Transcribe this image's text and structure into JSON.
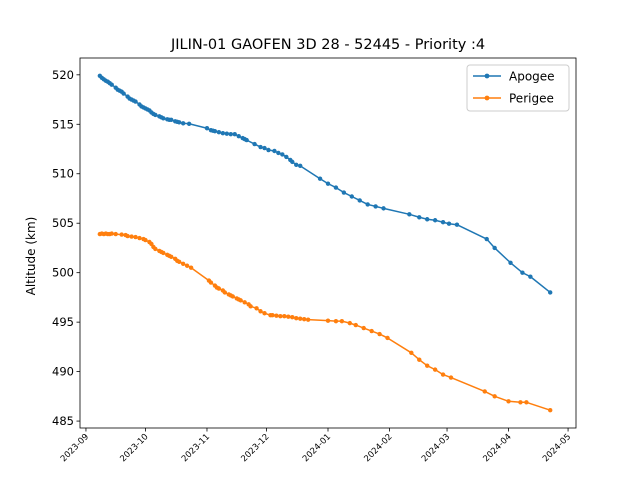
{
  "chart_data": {
    "type": "line",
    "title": "JILIN-01 GAOFEN 3D 28 - 52445 - Priority :4",
    "xlabel": "",
    "ylabel": "Altitude (km)",
    "xlim": [
      "2023-08-29",
      "2024-05-05"
    ],
    "ylim": [
      484.3,
      521.7
    ],
    "x_ticks": [
      "2023-09",
      "2023-10",
      "2023-11",
      "2023-12",
      "2024-01",
      "2024-02",
      "2024-03",
      "2024-04",
      "2024-05"
    ],
    "y_ticks": [
      485,
      490,
      495,
      500,
      505,
      510,
      515,
      520
    ],
    "legend_position": "upper right",
    "grid": false,
    "series": [
      {
        "name": "Apogee",
        "color": "#1f77b4",
        "points": [
          [
            "2023-09-08",
            519.9
          ],
          [
            "2023-09-09",
            519.7
          ],
          [
            "2023-09-10",
            519.55
          ],
          [
            "2023-09-11",
            519.4
          ],
          [
            "2023-09-12",
            519.3
          ],
          [
            "2023-09-13",
            519.15
          ],
          [
            "2023-09-14",
            519.0
          ],
          [
            "2023-09-16",
            518.7
          ],
          [
            "2023-09-17",
            518.5
          ],
          [
            "2023-09-18",
            518.4
          ],
          [
            "2023-09-19",
            518.3
          ],
          [
            "2023-09-20",
            518.1
          ],
          [
            "2023-09-22",
            517.8
          ],
          [
            "2023-09-23",
            517.6
          ],
          [
            "2023-09-24",
            517.5
          ],
          [
            "2023-09-25",
            517.4
          ],
          [
            "2023-09-26",
            517.3
          ],
          [
            "2023-09-28",
            517.0
          ],
          [
            "2023-09-29",
            516.8
          ],
          [
            "2023-09-30",
            516.7
          ],
          [
            "2023-10-01",
            516.6
          ],
          [
            "2023-10-02",
            516.5
          ],
          [
            "2023-10-03",
            516.4
          ],
          [
            "2023-10-04",
            516.2
          ],
          [
            "2023-10-05",
            516.05
          ],
          [
            "2023-10-06",
            515.95
          ],
          [
            "2023-10-08",
            515.8
          ],
          [
            "2023-10-09",
            515.7
          ],
          [
            "2023-10-10",
            515.6
          ],
          [
            "2023-10-12",
            515.5
          ],
          [
            "2023-10-13",
            515.45
          ],
          [
            "2023-10-14",
            515.45
          ],
          [
            "2023-10-16",
            515.3
          ],
          [
            "2023-10-17",
            515.25
          ],
          [
            "2023-10-18",
            515.2
          ],
          [
            "2023-10-20",
            515.1
          ],
          [
            "2023-10-23",
            515.05
          ],
          [
            "2023-11-01",
            514.6
          ],
          [
            "2023-11-03",
            514.4
          ],
          [
            "2023-11-04",
            514.35
          ],
          [
            "2023-11-05",
            514.3
          ],
          [
            "2023-11-07",
            514.2
          ],
          [
            "2023-11-09",
            514.1
          ],
          [
            "2023-11-11",
            514.05
          ],
          [
            "2023-11-13",
            514.0
          ],
          [
            "2023-11-15",
            514.0
          ],
          [
            "2023-11-17",
            513.8
          ],
          [
            "2023-11-19",
            513.6
          ],
          [
            "2023-11-20",
            513.5
          ],
          [
            "2023-11-21",
            513.4
          ],
          [
            "2023-11-25",
            513.0
          ],
          [
            "2023-11-28",
            512.7
          ],
          [
            "2023-11-30",
            512.6
          ],
          [
            "2023-12-02",
            512.4
          ],
          [
            "2023-12-05",
            512.3
          ],
          [
            "2023-12-07",
            512.1
          ],
          [
            "2023-12-09",
            511.95
          ],
          [
            "2023-12-11",
            511.7
          ],
          [
            "2023-12-13",
            511.4
          ],
          [
            "2023-12-14",
            511.2
          ],
          [
            "2023-12-16",
            510.9
          ],
          [
            "2023-12-18",
            510.8
          ],
          [
            "2023-12-28",
            509.5
          ],
          [
            "2024-01-01",
            509.0
          ],
          [
            "2024-01-05",
            508.6
          ],
          [
            "2024-01-09",
            508.1
          ],
          [
            "2024-01-13",
            507.7
          ],
          [
            "2024-01-17",
            507.3
          ],
          [
            "2024-01-21",
            506.9
          ],
          [
            "2024-01-25",
            506.7
          ],
          [
            "2024-01-29",
            506.5
          ],
          [
            "2024-02-11",
            505.9
          ],
          [
            "2024-02-16",
            505.6
          ],
          [
            "2024-02-20",
            505.4
          ],
          [
            "2024-02-24",
            505.3
          ],
          [
            "2024-02-28",
            505.1
          ],
          [
            "2024-03-02",
            504.95
          ],
          [
            "2024-03-06",
            504.85
          ],
          [
            "2024-03-21",
            503.4
          ],
          [
            "2024-03-25",
            502.5
          ],
          [
            "2024-04-02",
            501.0
          ],
          [
            "2024-04-08",
            500.0
          ],
          [
            "2024-04-12",
            499.6
          ],
          [
            "2024-04-22",
            498.0
          ]
        ]
      },
      {
        "name": "Perigee",
        "color": "#ff7f0e",
        "points": [
          [
            "2023-09-08",
            503.9
          ],
          [
            "2023-09-09",
            503.95
          ],
          [
            "2023-09-10",
            503.9
          ],
          [
            "2023-09-11",
            503.95
          ],
          [
            "2023-09-12",
            503.9
          ],
          [
            "2023-09-13",
            503.9
          ],
          [
            "2023-09-14",
            503.95
          ],
          [
            "2023-09-16",
            503.9
          ],
          [
            "2023-09-19",
            503.85
          ],
          [
            "2023-09-21",
            503.8
          ],
          [
            "2023-09-22",
            503.7
          ],
          [
            "2023-09-24",
            503.65
          ],
          [
            "2023-09-26",
            503.6
          ],
          [
            "2023-09-28",
            503.5
          ],
          [
            "2023-09-30",
            503.4
          ],
          [
            "2023-10-01",
            503.3
          ],
          [
            "2023-10-03",
            503.1
          ],
          [
            "2023-10-04",
            502.9
          ],
          [
            "2023-10-05",
            502.6
          ],
          [
            "2023-10-06",
            502.4
          ],
          [
            "2023-10-08",
            502.2
          ],
          [
            "2023-10-09",
            502.1
          ],
          [
            "2023-10-10",
            502.0
          ],
          [
            "2023-10-12",
            501.8
          ],
          [
            "2023-10-13",
            501.7
          ],
          [
            "2023-10-14",
            501.6
          ],
          [
            "2023-10-16",
            501.4
          ],
          [
            "2023-10-17",
            501.2
          ],
          [
            "2023-10-18",
            501.1
          ],
          [
            "2023-10-20",
            500.9
          ],
          [
            "2023-10-22",
            500.7
          ],
          [
            "2023-10-24",
            500.5
          ],
          [
            "2023-11-02",
            499.2
          ],
          [
            "2023-11-03",
            499.0
          ],
          [
            "2023-11-05",
            498.7
          ],
          [
            "2023-11-06",
            498.5
          ],
          [
            "2023-11-07",
            498.4
          ],
          [
            "2023-11-09",
            498.2
          ],
          [
            "2023-11-10",
            498.0
          ],
          [
            "2023-11-12",
            497.8
          ],
          [
            "2023-11-13",
            497.7
          ],
          [
            "2023-11-14",
            497.6
          ],
          [
            "2023-11-16",
            497.4
          ],
          [
            "2023-11-17",
            497.3
          ],
          [
            "2023-11-18",
            497.2
          ],
          [
            "2023-11-20",
            497.0
          ],
          [
            "2023-11-22",
            496.8
          ],
          [
            "2023-11-23",
            496.6
          ],
          [
            "2023-11-26",
            496.4
          ],
          [
            "2023-11-28",
            496.1
          ],
          [
            "2023-11-30",
            495.9
          ],
          [
            "2023-12-03",
            495.7
          ],
          [
            "2023-12-04",
            495.7
          ],
          [
            "2023-12-06",
            495.65
          ],
          [
            "2023-12-08",
            495.6
          ],
          [
            "2023-12-10",
            495.6
          ],
          [
            "2023-12-12",
            495.55
          ],
          [
            "2023-12-14",
            495.5
          ],
          [
            "2023-12-16",
            495.4
          ],
          [
            "2023-12-18",
            495.35
          ],
          [
            "2023-12-20",
            495.3
          ],
          [
            "2023-12-22",
            495.25
          ],
          [
            "2024-01-01",
            495.15
          ],
          [
            "2024-01-05",
            495.1
          ],
          [
            "2024-01-08",
            495.1
          ],
          [
            "2024-01-12",
            494.9
          ],
          [
            "2024-01-15",
            494.7
          ],
          [
            "2024-01-19",
            494.4
          ],
          [
            "2024-01-23",
            494.1
          ],
          [
            "2024-01-27",
            493.8
          ],
          [
            "2024-01-31",
            493.4
          ],
          [
            "2024-02-12",
            491.9
          ],
          [
            "2024-02-16",
            491.2
          ],
          [
            "2024-02-20",
            490.6
          ],
          [
            "2024-02-24",
            490.2
          ],
          [
            "2024-02-28",
            489.7
          ],
          [
            "2024-03-03",
            489.4
          ],
          [
            "2024-03-20",
            488.0
          ],
          [
            "2024-03-25",
            487.5
          ],
          [
            "2024-04-01",
            487.0
          ],
          [
            "2024-04-07",
            486.9
          ],
          [
            "2024-04-10",
            486.9
          ],
          [
            "2024-04-22",
            486.1
          ]
        ]
      }
    ]
  }
}
